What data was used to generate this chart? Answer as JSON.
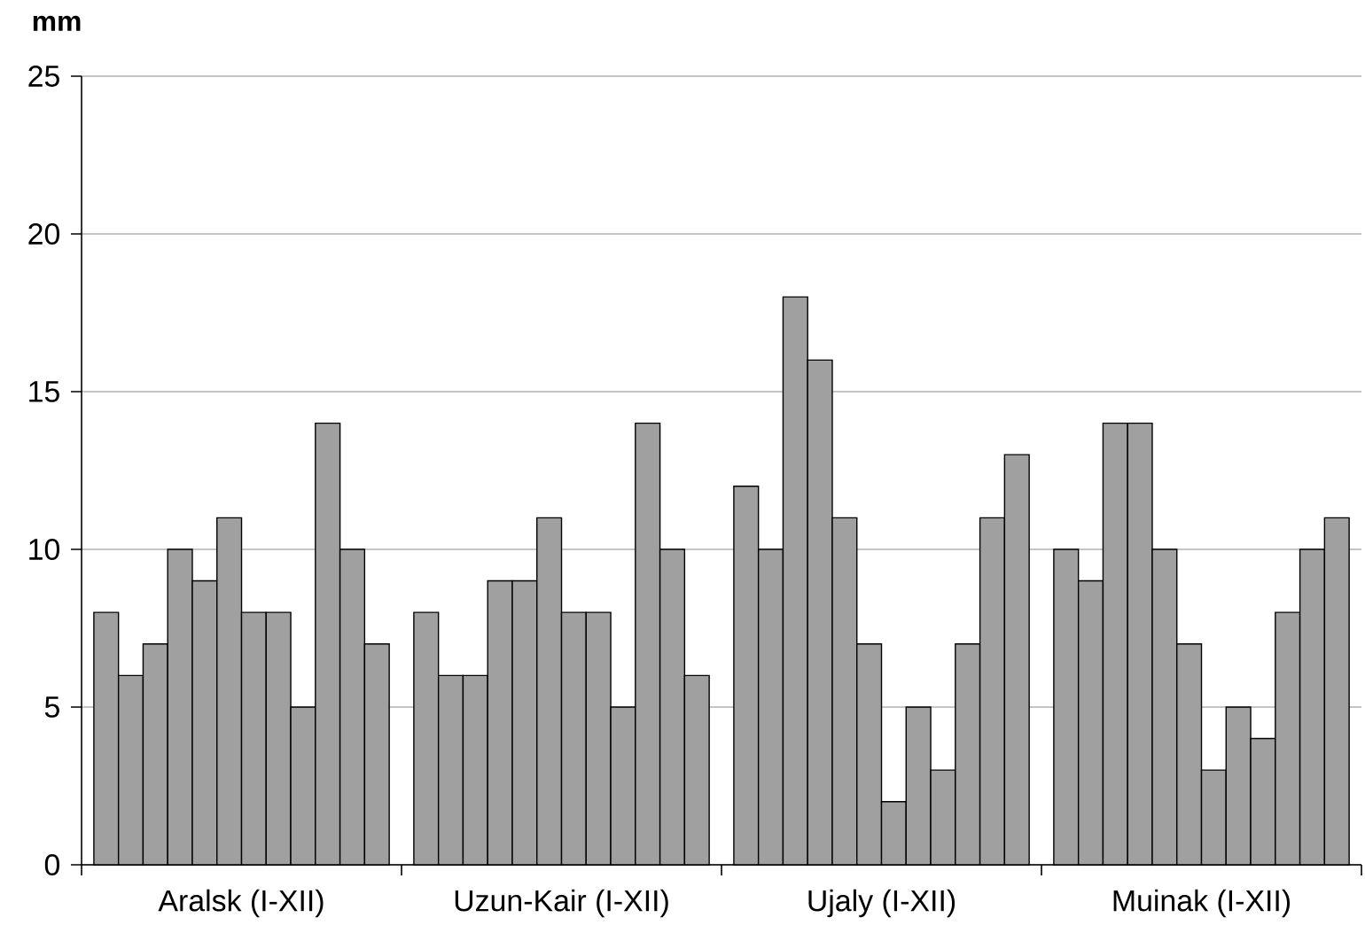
{
  "chart_data": {
    "type": "bar",
    "ylabel": "mm",
    "categories": [
      null,
      null,
      null,
      null,
      null,
      null,
      null,
      null,
      null,
      null,
      null,
      null,
      null,
      null,
      null,
      null,
      null,
      null,
      null,
      null,
      null,
      null,
      null,
      null,
      null,
      null,
      null,
      null,
      null,
      null,
      null,
      null,
      null,
      null,
      null,
      null,
      null,
      null,
      null,
      null,
      null,
      null,
      null,
      null,
      null,
      null,
      null,
      null,
      null,
      null,
      null
    ],
    "values": [
      8,
      6,
      7,
      10,
      9,
      11,
      8,
      8,
      5,
      14,
      10,
      7,
      null,
      8,
      6,
      6,
      9,
      9,
      11,
      8,
      8,
      5,
      14,
      10,
      6,
      null,
      12,
      10,
      18,
      16,
      11,
      7,
      2,
      5,
      3,
      7,
      11,
      13,
      null,
      10,
      9,
      14,
      14,
      10,
      7,
      3,
      5,
      4,
      8,
      10,
      11
    ],
    "color": "#a0a0a0",
    "ylim": [
      0,
      25
    ],
    "yticks": [
      0,
      5,
      10,
      15,
      20,
      25
    ],
    "grid": "y",
    "annotations": [
      "Aralsk (I-XII)",
      "Uzun-Kair (I-XII)",
      "Ujaly (I-XII)",
      "Muinak (I-XII)"
    ]
  }
}
